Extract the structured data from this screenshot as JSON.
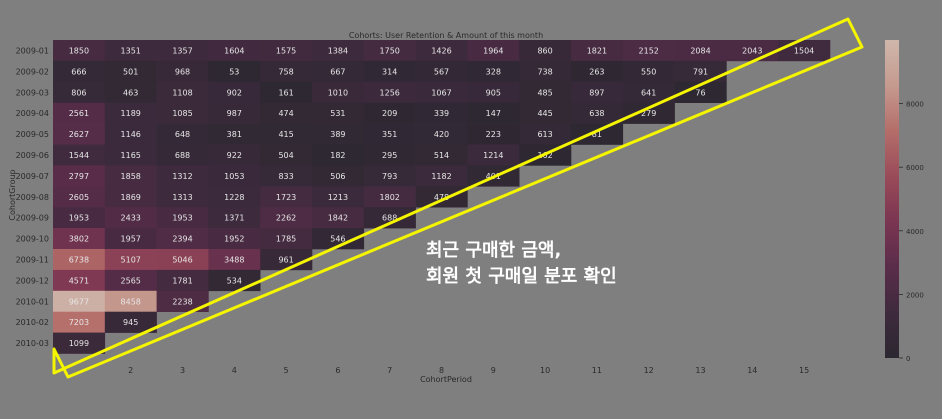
{
  "chart_data": {
    "type": "heatmap",
    "title": "Cohorts: User Retention & Amount of this month",
    "xlabel": "CohortPeriod",
    "ylabel": "CohortGroup",
    "x": [
      "1",
      "2",
      "3",
      "4",
      "5",
      "6",
      "7",
      "8",
      "9",
      "10",
      "11",
      "12",
      "13",
      "14",
      "15"
    ],
    "y": [
      "2009-01",
      "2009-02",
      "2009-03",
      "2009-04",
      "2009-05",
      "2009-06",
      "2009-07",
      "2009-08",
      "2009-09",
      "2009-10",
      "2009-11",
      "2009-12",
      "2010-01",
      "2010-02",
      "2010-03"
    ],
    "values": [
      [
        1850,
        1351,
        1357,
        1604,
        1575,
        1384,
        1750,
        1426,
        1964,
        860,
        1821,
        2152,
        2084,
        2043,
        1504
      ],
      [
        666,
        501,
        968,
        53,
        758,
        667,
        314,
        567,
        328,
        738,
        263,
        550,
        791,
        null,
        null
      ],
      [
        806,
        463,
        1108,
        902,
        161,
        1010,
        1256,
        1067,
        905,
        485,
        897,
        641,
        76,
        null,
        null
      ],
      [
        2561,
        1189,
        1085,
        987,
        474,
        531,
        209,
        339,
        147,
        445,
        638,
        279,
        null,
        null,
        null
      ],
      [
        2627,
        1146,
        648,
        381,
        415,
        389,
        351,
        420,
        223,
        613,
        81,
        null,
        null,
        null,
        null
      ],
      [
        1544,
        1165,
        688,
        922,
        504,
        182,
        295,
        514,
        1214,
        162,
        null,
        null,
        null,
        null,
        null
      ],
      [
        2797,
        1858,
        1312,
        1053,
        833,
        506,
        793,
        1182,
        401,
        null,
        null,
        null,
        null,
        null,
        null
      ],
      [
        2605,
        1869,
        1313,
        1228,
        1723,
        1213,
        1802,
        478,
        null,
        null,
        null,
        null,
        null,
        null,
        null
      ],
      [
        1953,
        2433,
        1953,
        1371,
        2262,
        1842,
        688,
        null,
        null,
        null,
        null,
        null,
        null,
        null,
        null
      ],
      [
        3802,
        1957,
        2394,
        1952,
        1785,
        546,
        null,
        null,
        null,
        null,
        null,
        null,
        null,
        null,
        null
      ],
      [
        6738,
        5107,
        5046,
        3488,
        961,
        null,
        null,
        null,
        null,
        null,
        null,
        null,
        null,
        null,
        null
      ],
      [
        4571,
        2565,
        1781,
        534,
        null,
        null,
        null,
        null,
        null,
        null,
        null,
        null,
        null,
        null,
        null
      ],
      [
        9677,
        8458,
        2238,
        null,
        null,
        null,
        null,
        null,
        null,
        null,
        null,
        null,
        null,
        null,
        null
      ],
      [
        7203,
        945,
        null,
        null,
        null,
        null,
        null,
        null,
        null,
        null,
        null,
        null,
        null,
        null,
        null
      ],
      [
        1099,
        null,
        null,
        null,
        null,
        null,
        null,
        null,
        null,
        null,
        null,
        null,
        null,
        null,
        null
      ]
    ],
    "vlim": [
      0,
      10000
    ],
    "colorbar_ticks": [
      0,
      2000,
      4000,
      6000,
      8000
    ],
    "colorscale": [
      "#2c2831",
      "#3e2a3d",
      "#5a2d4a",
      "#7a3551",
      "#9a4b59",
      "#b46e6a",
      "#c59a8f",
      "#cfb7ab"
    ]
  },
  "annotation": {
    "text_line1": "최근 구매한 금액,",
    "text_line2": "회원 첫 구매일 분포 확인",
    "highlight_color": "#f5f500"
  }
}
